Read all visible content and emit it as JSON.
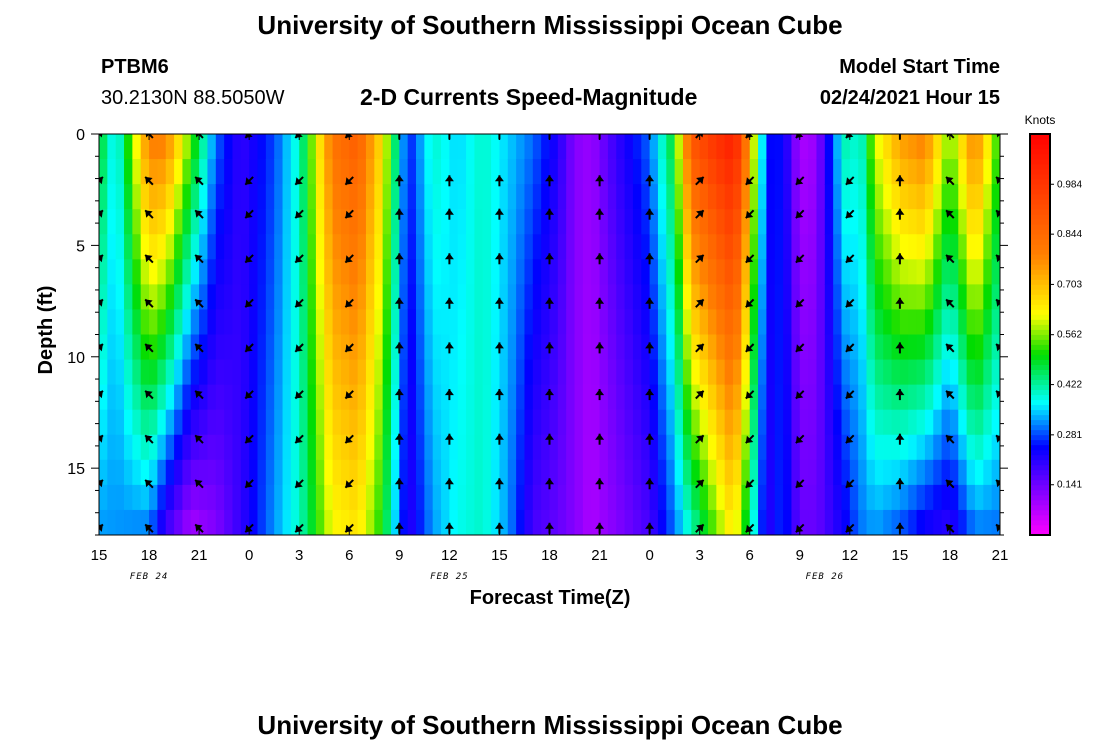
{
  "page": {
    "title_top": "University of Southern Mississippi Ocean Cube",
    "title_bottom": "University of Southern Mississippi Ocean Cube",
    "station_id": "PTBM6",
    "station_coords": "30.2130N 88.5050W",
    "plot_title": "2-D Currents Speed-Magnitude",
    "model_start_label": "Model Start Time",
    "model_start_value": "02/24/2021 Hour 15"
  },
  "chart_data": {
    "type": "heatmap",
    "title": "2-D Currents Speed-Magnitude",
    "xlabel": "Forecast Time(Z)",
    "ylabel": "Depth (ft)",
    "ylim": [
      0,
      18
    ],
    "y_reversed": true,
    "hours": [
      15,
      18,
      21,
      0,
      3,
      6,
      9,
      12,
      15,
      18,
      21,
      0,
      3,
      6,
      9,
      12,
      15,
      18,
      21
    ],
    "x_tick_labels": [
      "15",
      "18",
      "21",
      "0",
      "3",
      "6",
      "9",
      "12",
      "15",
      "18",
      "21",
      "0",
      "3",
      "6",
      "9",
      "12",
      "15",
      "18",
      "21"
    ],
    "y_ticks": [
      0,
      5,
      10,
      15
    ],
    "y_tick_labels": [
      "0",
      "5",
      "10",
      "15"
    ],
    "date_labels": [
      {
        "text": "FEB 24",
        "hour_index": 1
      },
      {
        "text": "FEB 25",
        "hour_index": 7
      },
      {
        "text": "FEB 26",
        "hour_index": 14.5
      }
    ],
    "colorbar": {
      "units": "Knots",
      "min": 0.0,
      "max": 1.125,
      "tick_values": [
        0.141,
        0.281,
        0.422,
        0.562,
        0.703,
        0.844,
        0.984
      ],
      "tick_labels": [
        "0.141",
        "0.281",
        "0.422",
        "0.562",
        "0.703",
        "0.844",
        "0.984"
      ]
    },
    "speed_profile": {
      "hours_from_start": [
        0,
        1,
        3,
        4,
        5.5,
        7,
        8.5,
        10.5,
        12,
        14,
        15.5,
        17,
        18.5,
        20,
        21.5,
        23,
        24.5,
        26,
        27.5,
        28.5,
        29.5,
        31,
        33,
        34.5,
        35.5,
        37,
        38,
        38.5,
        40,
        41,
        42,
        43,
        44,
        45,
        45.5,
        46.5,
        48,
        49.5,
        51,
        52.5,
        54
      ],
      "surface_knots": [
        0.5,
        0.35,
        0.8,
        0.8,
        0.55,
        0.3,
        0.2,
        0.28,
        0.4,
        0.82,
        0.88,
        0.65,
        0.25,
        0.4,
        0.35,
        0.4,
        0.35,
        0.3,
        0.22,
        0.12,
        0.1,
        0.2,
        0.3,
        0.5,
        0.9,
        1.0,
        1.05,
        0.95,
        0.25,
        0.25,
        0.08,
        0.1,
        0.3,
        0.45,
        0.35,
        0.6,
        0.75,
        0.8,
        0.55,
        0.8,
        0.5
      ],
      "bottom_knots": [
        0.32,
        0.32,
        0.3,
        0.18,
        0.08,
        0.12,
        0.2,
        0.32,
        0.4,
        0.62,
        0.65,
        0.5,
        0.2,
        0.32,
        0.38,
        0.4,
        0.32,
        0.18,
        0.15,
        0.12,
        0.08,
        0.12,
        0.18,
        0.3,
        0.4,
        0.55,
        0.65,
        0.55,
        0.2,
        0.28,
        0.15,
        0.15,
        0.2,
        0.25,
        0.3,
        0.32,
        0.28,
        0.22,
        0.2,
        0.3,
        0.3
      ]
    },
    "vectors": {
      "hours_from_start": [
        0,
        3,
        6,
        9,
        12,
        15,
        18,
        21,
        24,
        27,
        30,
        33,
        36,
        39,
        42,
        45,
        48,
        51,
        54
      ],
      "depths_ft": [
        0,
        2.1,
        3.6,
        5.6,
        7.6,
        9.6,
        11.7,
        13.7,
        15.7,
        17.7
      ],
      "direction_deg": [
        45,
        315,
        315,
        225,
        225,
        225,
        0,
        0,
        0,
        0,
        0,
        0,
        45,
        225,
        225,
        225,
        0,
        315,
        315
      ]
    }
  }
}
